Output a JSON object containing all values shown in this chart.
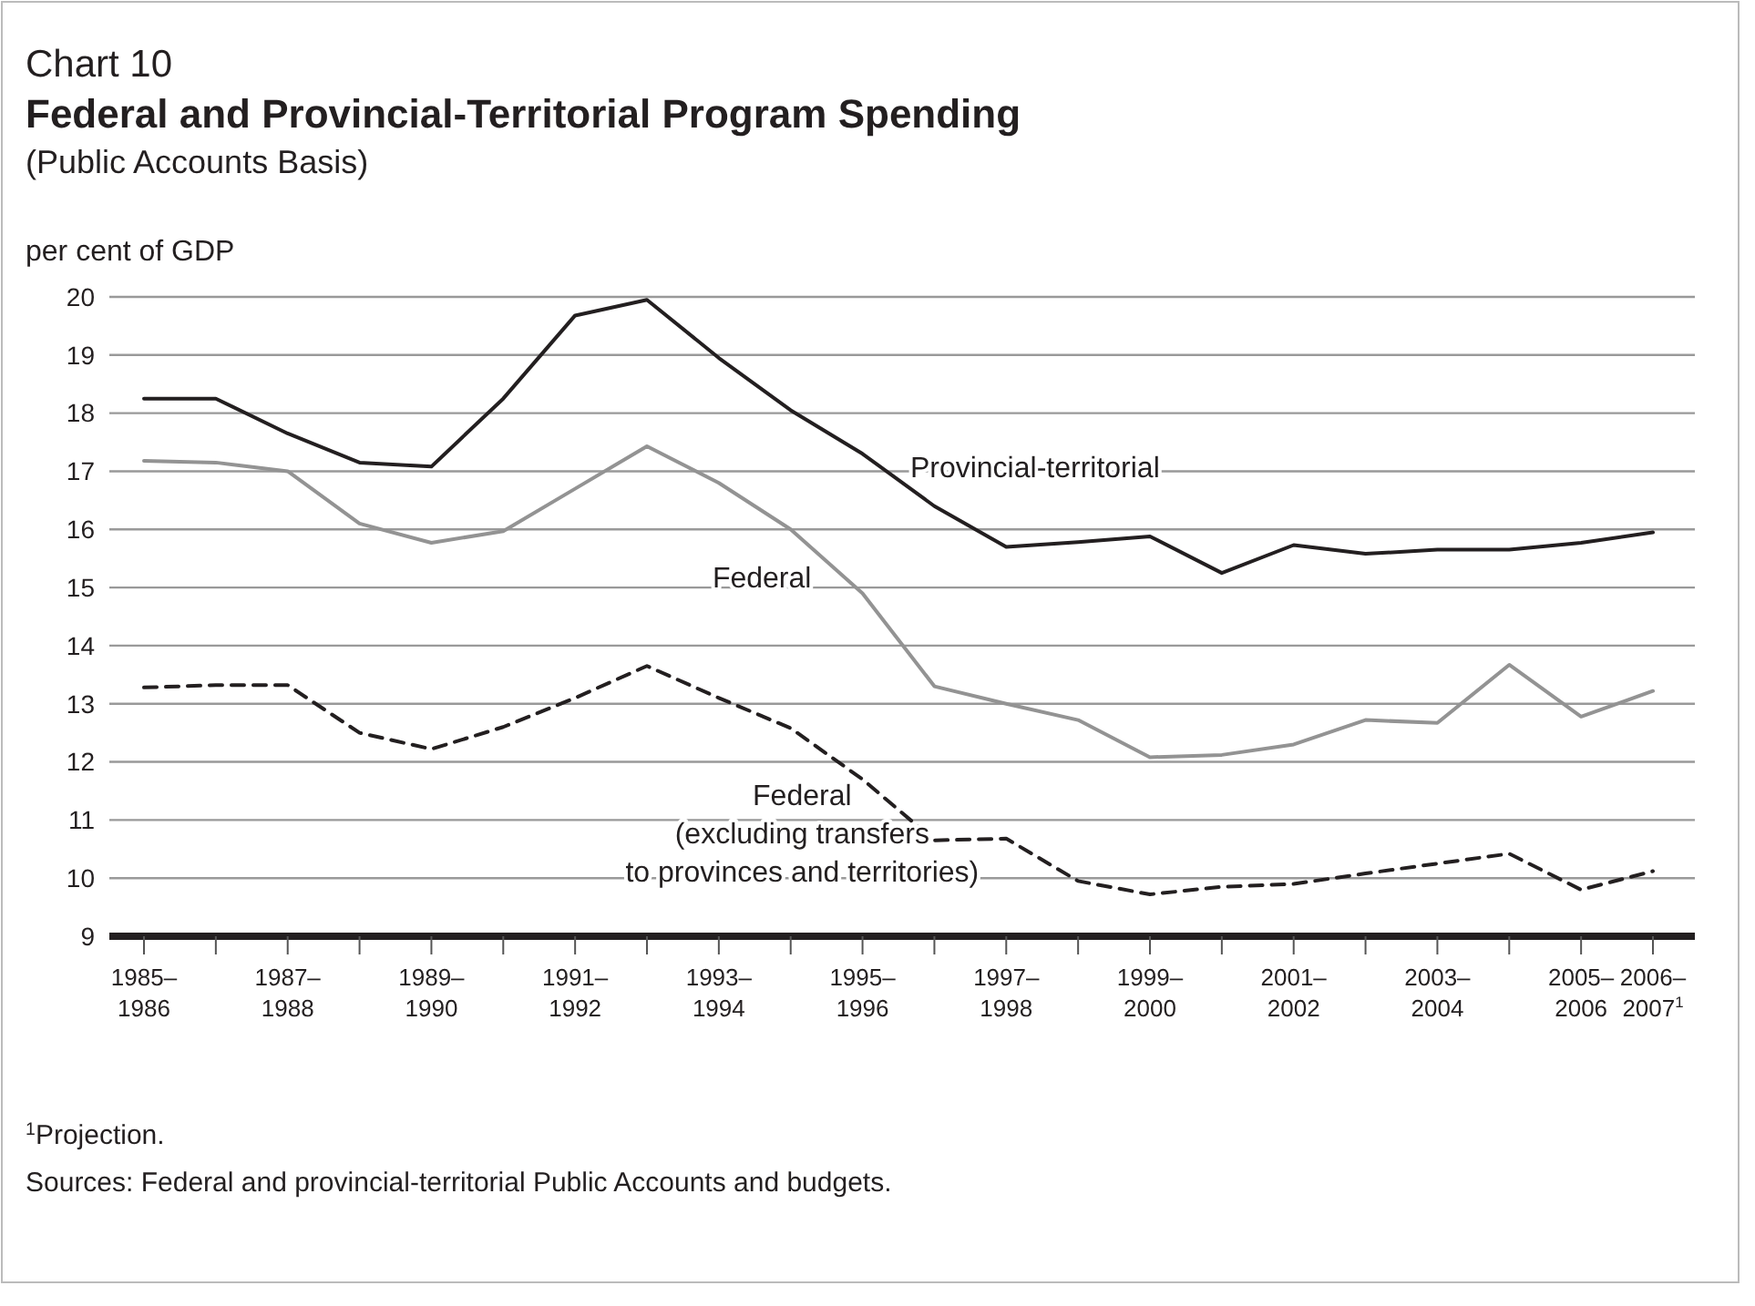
{
  "chart_data": {
    "type": "line",
    "title": "Chart 10",
    "subtitle": "Federal and Provincial-Territorial Program Spending",
    "annotations": [
      "(Public Accounts Basis)",
      "$^{1}$Projection.",
      "Sources: Federal and provincial-territorial Public Accounts and budgets."
    ],
    "ylabel": "per cent of GDP",
    "categories": [
      "1985–1986",
      null,
      "1987–1988",
      null,
      "1989–1990",
      null,
      "1991–1992",
      null,
      "1993–1994",
      null,
      "1995–1996",
      null,
      "1997–1998",
      null,
      "1999–2000",
      null,
      "2001–2002",
      null,
      "2003–2004",
      null,
      "2005–2006",
      "2006–2007$^{1}$"
    ],
    "series": [
      {
        "name": "Provincial-territorial",
        "color": "#231f20",
        "line_style": "solid",
        "values": [
          18.25,
          18.25,
          17.65,
          17.15,
          17.08,
          18.25,
          19.68,
          19.95,
          18.95,
          18.05,
          17.3,
          16.4,
          15.7,
          15.78,
          15.88,
          15.25,
          15.73,
          15.58,
          15.65,
          15.65,
          15.77,
          15.95
        ]
      },
      {
        "name": "Federal",
        "color": "#939393",
        "line_style": "solid",
        "values": [
          17.18,
          17.15,
          17.0,
          16.1,
          15.77,
          15.97,
          16.7,
          17.43,
          16.8,
          16.0,
          14.9,
          13.3,
          13.0,
          12.72,
          12.08,
          12.12,
          12.3,
          12.72,
          12.67,
          13.67,
          12.78,
          13.22
        ]
      },
      {
        "name": "Federal (excluding transfers to provinces and territories)",
        "color": "#231f20",
        "line_style": "dashed",
        "values": [
          13.28,
          13.32,
          13.32,
          12.5,
          12.22,
          12.6,
          13.1,
          13.65,
          13.1,
          12.58,
          11.7,
          10.65,
          10.68,
          9.95,
          9.72,
          9.85,
          9.9,
          10.08,
          10.25,
          10.42,
          9.8,
          10.12
        ]
      }
    ],
    "ylim": [
      9,
      20
    ],
    "yticks": [
      9,
      10,
      11,
      12,
      13,
      14,
      15,
      16,
      17,
      18,
      19,
      20
    ],
    "grid": "y"
  }
}
